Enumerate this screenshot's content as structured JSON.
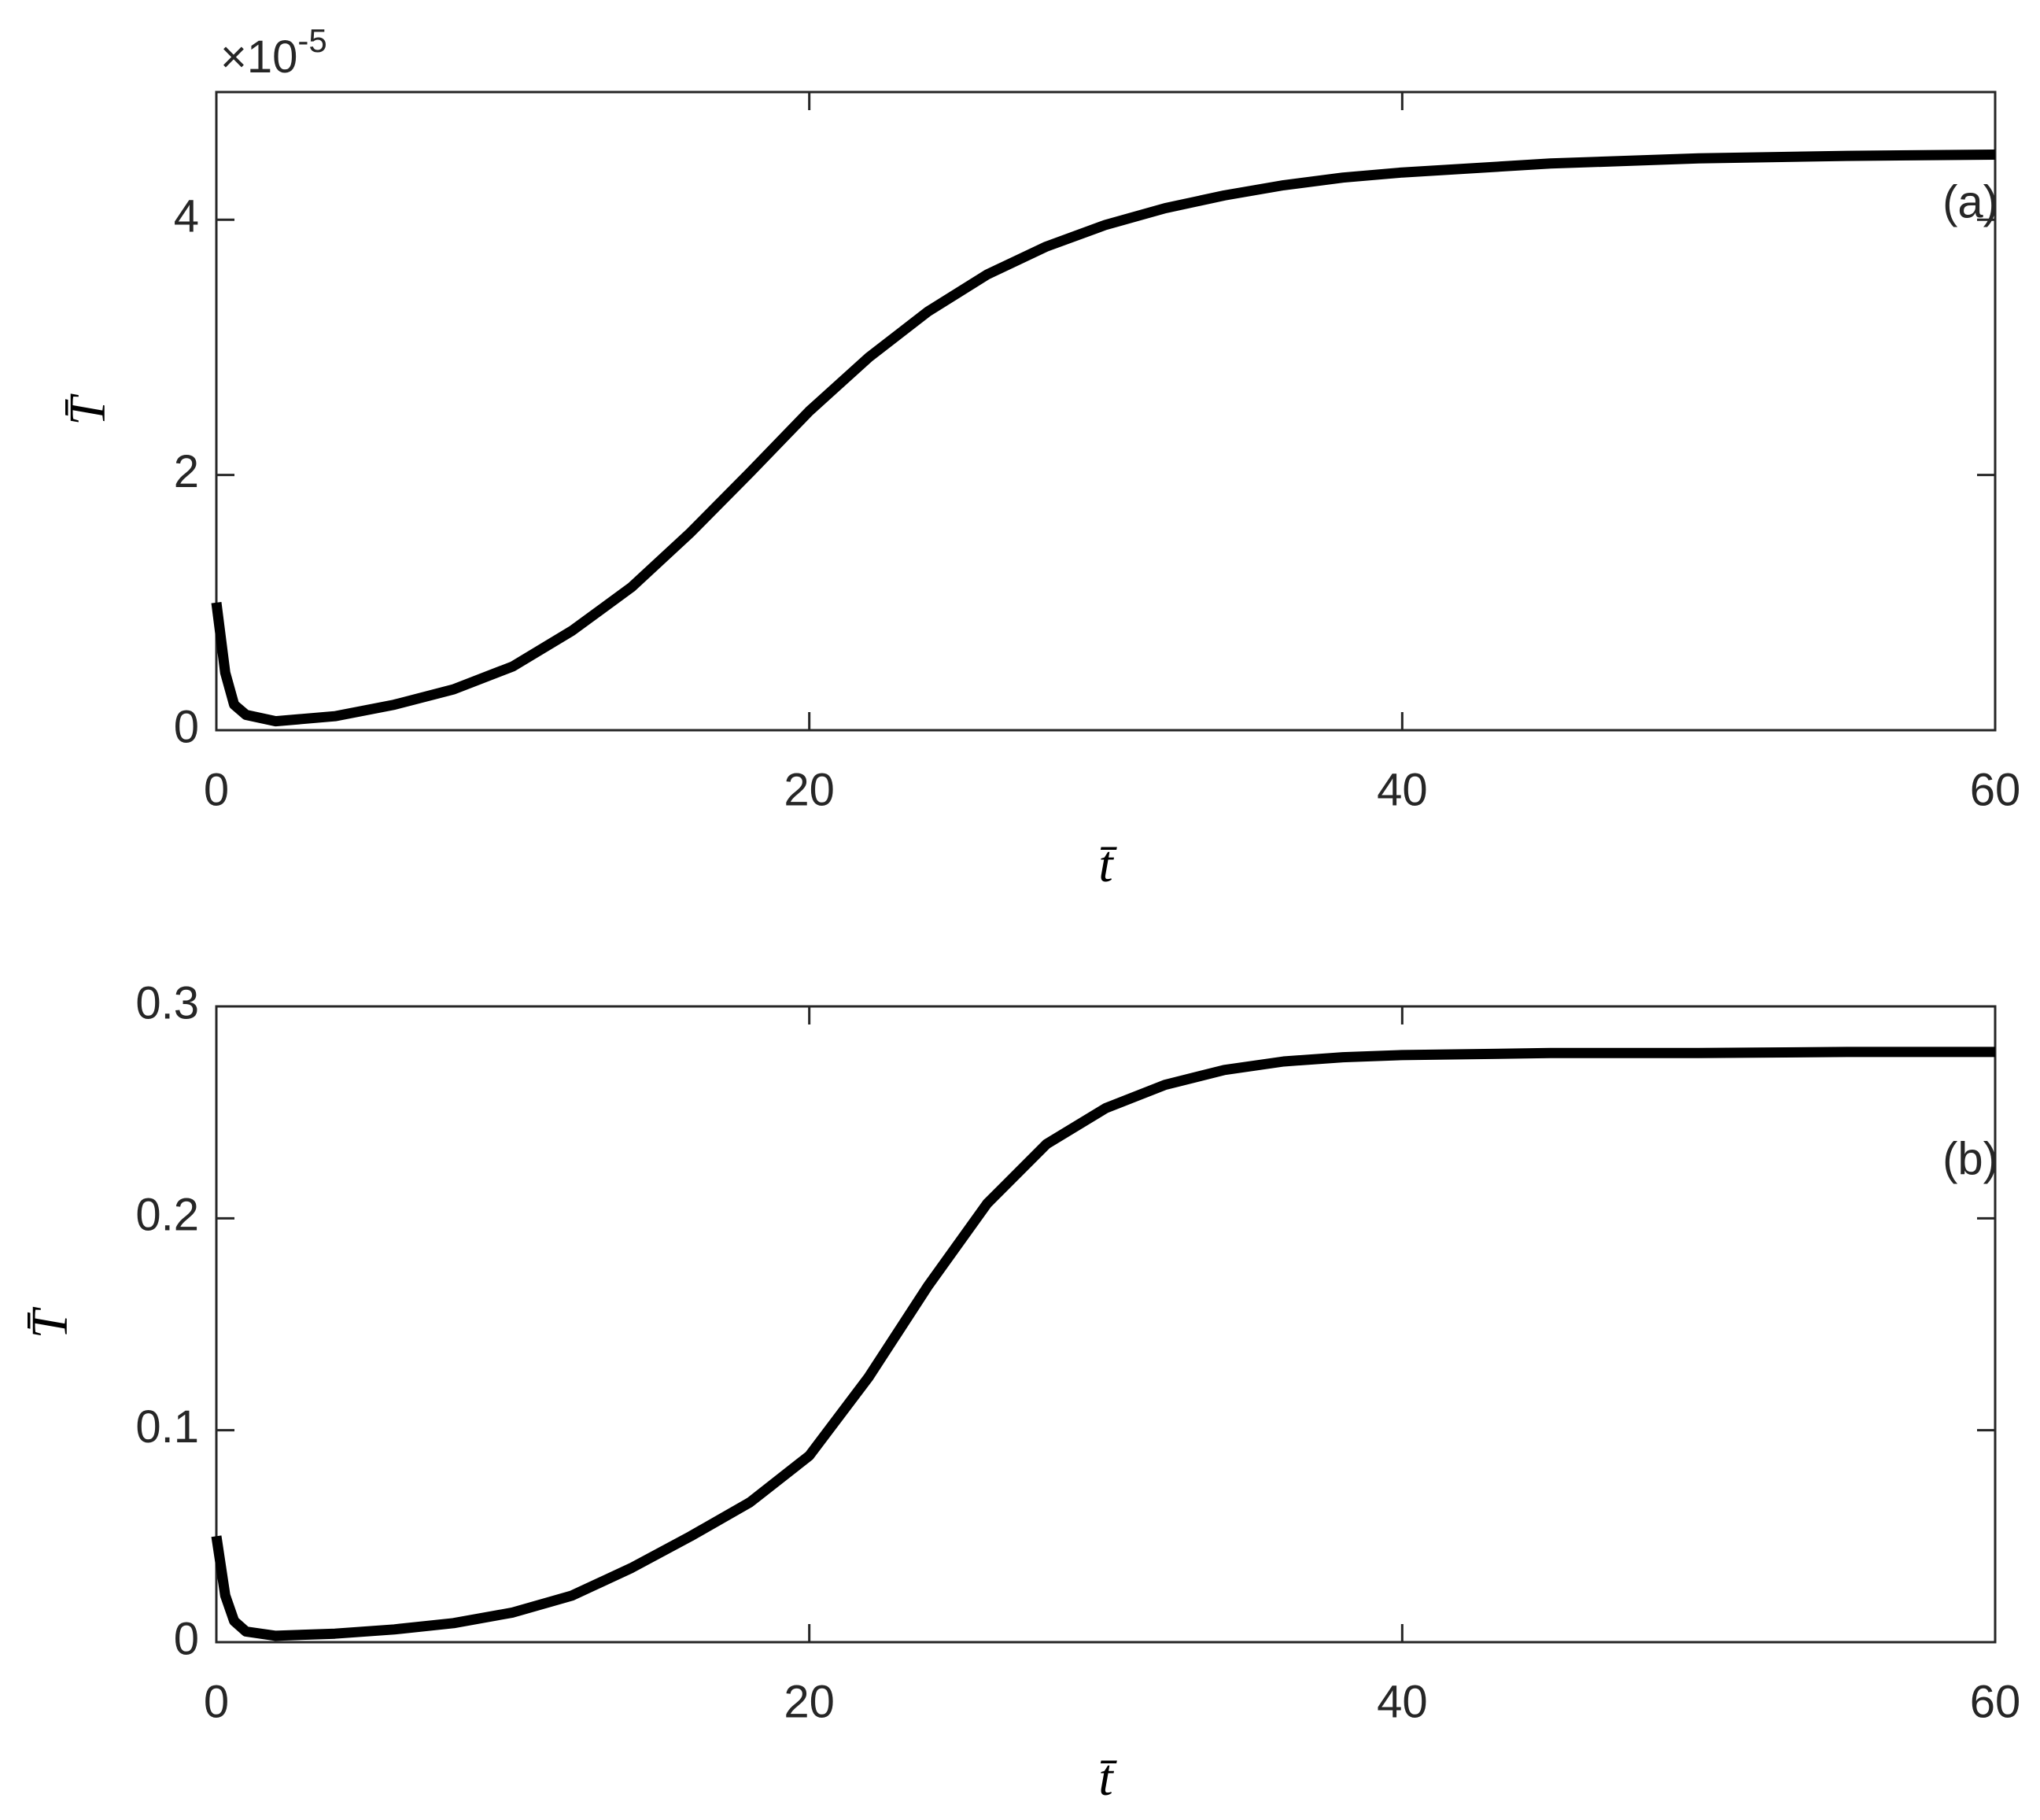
{
  "chart_data": [
    {
      "type": "line",
      "x_label": "t̄",
      "y_label": "T̄",
      "annotation": "(a)",
      "y_multiplier": "×10",
      "y_exponent": "-5",
      "xlim": [
        0,
        60
      ],
      "ylim": [
        0,
        5
      ],
      "xticks": [
        0,
        20,
        40,
        60
      ],
      "yticks": [
        0,
        2,
        4
      ],
      "color": "#000000",
      "x": [
        0,
        0.3,
        0.6,
        1,
        2,
        4,
        6,
        8,
        10,
        12,
        14,
        16,
        18,
        20,
        22,
        24,
        26,
        28,
        30,
        32,
        34,
        36,
        38,
        40,
        45,
        50,
        55,
        60
      ],
      "values": [
        1.0,
        0.45,
        0.2,
        0.12,
        0.07,
        0.11,
        0.2,
        0.32,
        0.5,
        0.78,
        1.12,
        1.55,
        2.02,
        2.5,
        2.92,
        3.28,
        3.57,
        3.79,
        3.96,
        4.09,
        4.19,
        4.27,
        4.33,
        4.37,
        4.44,
        4.48,
        4.5,
        4.51
      ]
    },
    {
      "type": "line",
      "x_label": "t̄",
      "y_label": "T̄",
      "annotation": "(b)",
      "xlim": [
        0,
        60
      ],
      "ylim": [
        0,
        0.3
      ],
      "xticks": [
        0,
        20,
        40,
        60
      ],
      "yticks": [
        0,
        0.1,
        0.2,
        0.3
      ],
      "color": "#000000",
      "x": [
        0,
        0.3,
        0.6,
        1,
        2,
        4,
        6,
        8,
        10,
        12,
        14,
        16,
        18,
        20,
        22,
        24,
        26,
        28,
        30,
        32,
        34,
        36,
        38,
        40,
        45,
        50,
        55,
        60
      ],
      "values": [
        0.05,
        0.022,
        0.01,
        0.005,
        0.003,
        0.004,
        0.006,
        0.009,
        0.014,
        0.022,
        0.035,
        0.05,
        0.066,
        0.088,
        0.125,
        0.168,
        0.207,
        0.235,
        0.252,
        0.263,
        0.27,
        0.274,
        0.276,
        0.277,
        0.278,
        0.278,
        0.2785,
        0.2785
      ]
    }
  ]
}
